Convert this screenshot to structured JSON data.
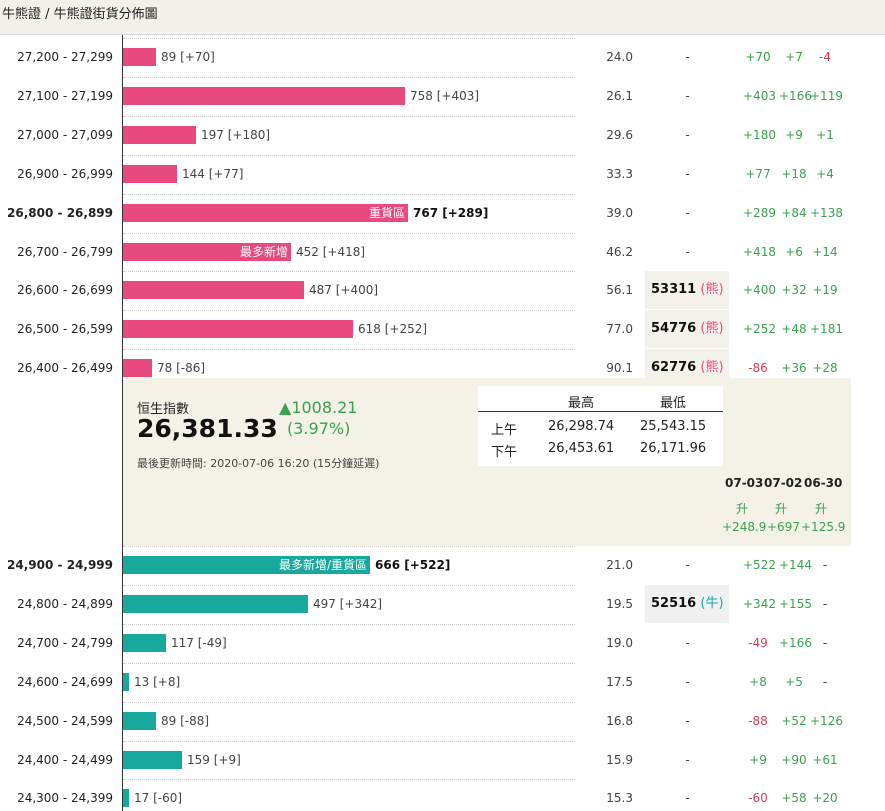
{
  "breadcrumb": "牛熊證 / 牛熊證街貨分佈圖",
  "bear_rows": [
    {
      "range": "27,200 - 27,299",
      "qty": "89 [+70]",
      "level": "24.0",
      "d1": "+70",
      "d2": "+7",
      "d3": "-4"
    },
    {
      "range": "27,100 - 27,199",
      "qty": "758 [+403]",
      "level": "26.1",
      "d1": "+403",
      "d2": "+166",
      "d3": "+119"
    },
    {
      "range": "27,000 - 27,099",
      "qty": "197 [+180]",
      "level": "29.6",
      "d1": "+180",
      "d2": "+9",
      "d3": "+1"
    },
    {
      "range": "26,900 - 26,999",
      "qty": "144 [+77]",
      "level": "33.3",
      "d1": "+77",
      "d2": "+18",
      "d3": "+4"
    },
    {
      "range": "26,800 - 26,899",
      "qty": "767 [+289]",
      "level": "39.0",
      "tag": "重貨區",
      "d1": "+289",
      "d2": "+84",
      "d3": "+138"
    },
    {
      "range": "26,700 - 26,799",
      "qty": "452 [+418]",
      "level": "46.2",
      "tag": "最多新增",
      "d1": "+418",
      "d2": "+6",
      "d3": "+14"
    },
    {
      "range": "26,600 - 26,699",
      "qty": "487 [+400]",
      "level": "56.1",
      "code": "53311",
      "code_type": "熊",
      "d1": "+400",
      "d2": "+32",
      "d3": "+19"
    },
    {
      "range": "26,500 - 26,599",
      "qty": "618 [+252]",
      "level": "77.0",
      "code": "54776",
      "code_type": "熊",
      "d1": "+252",
      "d2": "+48",
      "d3": "+181"
    },
    {
      "range": "26,400 - 26,499",
      "qty": "78 [-86]",
      "level": "90.1",
      "code": "62776",
      "code_type": "熊",
      "d1": "-86",
      "d2": "+36",
      "d3": "+28"
    }
  ],
  "bull_rows": [
    {
      "range": "24,900 - 24,999",
      "qty": "666 [+522]",
      "level": "21.0",
      "tag": "最多新增/重貨區",
      "d1": "+522",
      "d2": "+144",
      "d3": "-"
    },
    {
      "range": "24,800 - 24,899",
      "qty": "497 [+342]",
      "level": "19.5",
      "code": "52516",
      "code_type": "牛",
      "d1": "+342",
      "d2": "+155",
      "d3": "-"
    },
    {
      "range": "24,700 - 24,799",
      "qty": "117 [-49]",
      "level": "19.0",
      "d1": "-49",
      "d2": "+166",
      "d3": "-"
    },
    {
      "range": "24,600 - 24,699",
      "qty": "13 [+8]",
      "level": "17.5",
      "d1": "+8",
      "d2": "+5",
      "d3": "-"
    },
    {
      "range": "24,500 - 24,599",
      "qty": "89 [-88]",
      "level": "16.8",
      "d1": "-88",
      "d2": "+52",
      "d3": "+126"
    },
    {
      "range": "24,400 - 24,499",
      "qty": "159 [+9]",
      "level": "15.9",
      "d1": "+9",
      "d2": "+90",
      "d3": "+61"
    },
    {
      "range": "24,300 - 24,399",
      "qty": "17 [-60]",
      "level": "15.3",
      "d1": "-60",
      "d2": "+58",
      "d3": "+20"
    }
  ],
  "dash": "-",
  "hsi": {
    "name": "恒生指數",
    "value": "26,381.33",
    "change": "1008.21",
    "change_arrow": "▲",
    "change_pct": "(3.97%)",
    "updated": "最後更新時間: 2020-07-06 16:20 (15分鐘延遲)",
    "hl_headers": [
      "最高",
      "最低"
    ],
    "hl_rows": [
      {
        "label": "上午",
        "high": "26,298.74",
        "low": "25,543.15"
      },
      {
        "label": "下午",
        "high": "26,453.61",
        "low": "26,171.96"
      }
    ],
    "trend": [
      {
        "date": "07-03",
        "dir": "升",
        "val": "+248.9"
      },
      {
        "date": "07-02",
        "dir": "升",
        "val": "+697"
      },
      {
        "date": "06-30",
        "dir": "升",
        "val": "+125.9"
      }
    ]
  },
  "colors": {
    "bear": "#e84a7f",
    "bull": "#17a99b",
    "up": "#3aa14f",
    "down": "#d63d55"
  }
}
